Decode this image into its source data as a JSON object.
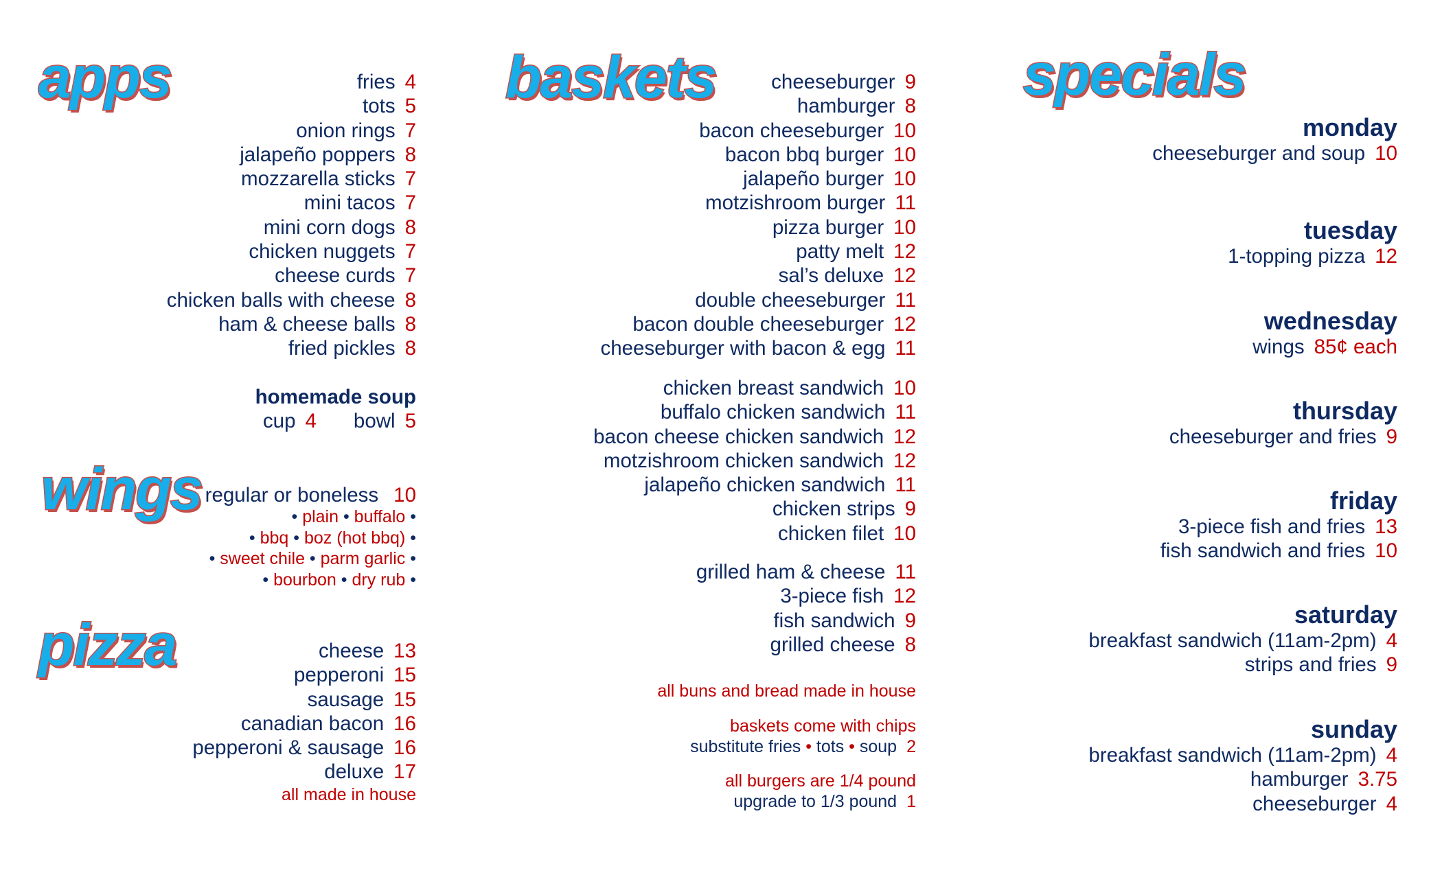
{
  "colors": {
    "heading_fill": "#17aee9",
    "heading_outline": "#c4504c",
    "item_text": "#0f2a62",
    "price": "#c00000"
  },
  "apps": {
    "title": "apps",
    "items": [
      {
        "name": "fries",
        "price": "4"
      },
      {
        "name": "tots",
        "price": "5"
      },
      {
        "name": "onion rings",
        "price": "7"
      },
      {
        "name": "jalapeño poppers",
        "price": "8"
      },
      {
        "name": "mozzarella sticks",
        "price": "7"
      },
      {
        "name": "mini tacos",
        "price": "7"
      },
      {
        "name": "mini corn dogs",
        "price": "8"
      },
      {
        "name": "chicken nuggets",
        "price": "7"
      },
      {
        "name": "cheese curds",
        "price": "7"
      },
      {
        "name": "chicken balls with cheese",
        "price": "8"
      },
      {
        "name": "ham & cheese balls",
        "price": "8"
      },
      {
        "name": "fried pickles",
        "price": "8"
      }
    ]
  },
  "soup": {
    "title": "homemade soup",
    "cup_label": "cup",
    "cup_price": "4",
    "bowl_label": "bowl",
    "bowl_price": "5"
  },
  "wings": {
    "title": "wings",
    "item": {
      "name": "regular or boneless",
      "price": "10"
    },
    "flavor_lines": [
      [
        "plain",
        "buffalo"
      ],
      [
        "bbq",
        "boz (hot bbq)"
      ],
      [
        "sweet chile",
        "parm garlic"
      ],
      [
        "bourbon",
        "dry rub"
      ]
    ]
  },
  "pizza": {
    "title": "pizza",
    "items": [
      {
        "name": "cheese",
        "price": "13"
      },
      {
        "name": "pepperoni",
        "price": "15"
      },
      {
        "name": "sausage",
        "price": "15"
      },
      {
        "name": "canadian bacon",
        "price": "16"
      },
      {
        "name": "pepperoni & sausage",
        "price": "16"
      },
      {
        "name": "deluxe",
        "price": "17"
      }
    ],
    "note": "all made in house"
  },
  "baskets": {
    "title": "baskets",
    "groups": [
      [
        {
          "name": "cheeseburger",
          "price": "9"
        },
        {
          "name": "hamburger",
          "price": "8"
        },
        {
          "name": "bacon cheeseburger",
          "price": "10"
        },
        {
          "name": "bacon bbq burger",
          "price": "10"
        },
        {
          "name": "jalapeño burger",
          "price": "10"
        },
        {
          "name": "motzishroom burger",
          "price": "11"
        },
        {
          "name": "pizza burger",
          "price": "10"
        },
        {
          "name": "patty melt",
          "price": "12"
        },
        {
          "name": "sal’s deluxe",
          "price": "12"
        },
        {
          "name": "double cheeseburger",
          "price": "11"
        },
        {
          "name": "bacon double cheeseburger",
          "price": "12"
        },
        {
          "name": "cheeseburger with bacon & egg",
          "price": "11"
        }
      ],
      [
        {
          "name": "chicken breast sandwich",
          "price": "10"
        },
        {
          "name": "buffalo chicken sandwich",
          "price": "11"
        },
        {
          "name": "bacon cheese chicken sandwich",
          "price": "12"
        },
        {
          "name": "motzishroom chicken sandwich",
          "price": "12"
        },
        {
          "name": "jalapeño chicken sandwich",
          "price": "11"
        },
        {
          "name": "chicken strips",
          "price": "9"
        },
        {
          "name": "chicken filet",
          "price": "10"
        }
      ],
      [
        {
          "name": "grilled ham & cheese",
          "price": "11"
        },
        {
          "name": "3-piece fish",
          "price": "12"
        },
        {
          "name": "fish sandwich",
          "price": "9"
        },
        {
          "name": "grilled cheese",
          "price": "8"
        }
      ]
    ],
    "notes": {
      "buns": "all buns and bread made in house",
      "chips": "baskets come with chips",
      "substitute_label": "substitute",
      "substitute_options": [
        "fries",
        "tots",
        "soup"
      ],
      "substitute_price": "2",
      "burgers": "all burgers are 1/4 pound",
      "upgrade_label": "upgrade to 1/3 pound",
      "upgrade_price": "1"
    }
  },
  "specials": {
    "title": "specials",
    "days": [
      {
        "day": "monday",
        "items": [
          {
            "name": "cheeseburger and soup",
            "price": "10"
          }
        ]
      },
      {
        "day": "tuesday",
        "items": [
          {
            "name": "1-topping pizza",
            "price": "12"
          }
        ]
      },
      {
        "day": "wednesday",
        "items": [
          {
            "name": "wings",
            "price": "85¢ each"
          }
        ]
      },
      {
        "day": "thursday",
        "items": [
          {
            "name": "cheeseburger and fries",
            "price": "9"
          }
        ]
      },
      {
        "day": "friday",
        "items": [
          {
            "name": "3-piece fish and fries",
            "price": "13"
          },
          {
            "name": "fish sandwich and fries",
            "price": "10"
          }
        ]
      },
      {
        "day": "saturday",
        "items": [
          {
            "name": "breakfast sandwich (11am-2pm)",
            "price": "4"
          },
          {
            "name": "strips and fries",
            "price": "9"
          }
        ]
      },
      {
        "day": "sunday",
        "items": [
          {
            "name": "breakfast sandwich (11am-2pm)",
            "price": "4"
          },
          {
            "name": "hamburger",
            "price": "3.75"
          },
          {
            "name": "cheeseburger",
            "price": "4"
          }
        ]
      }
    ]
  }
}
